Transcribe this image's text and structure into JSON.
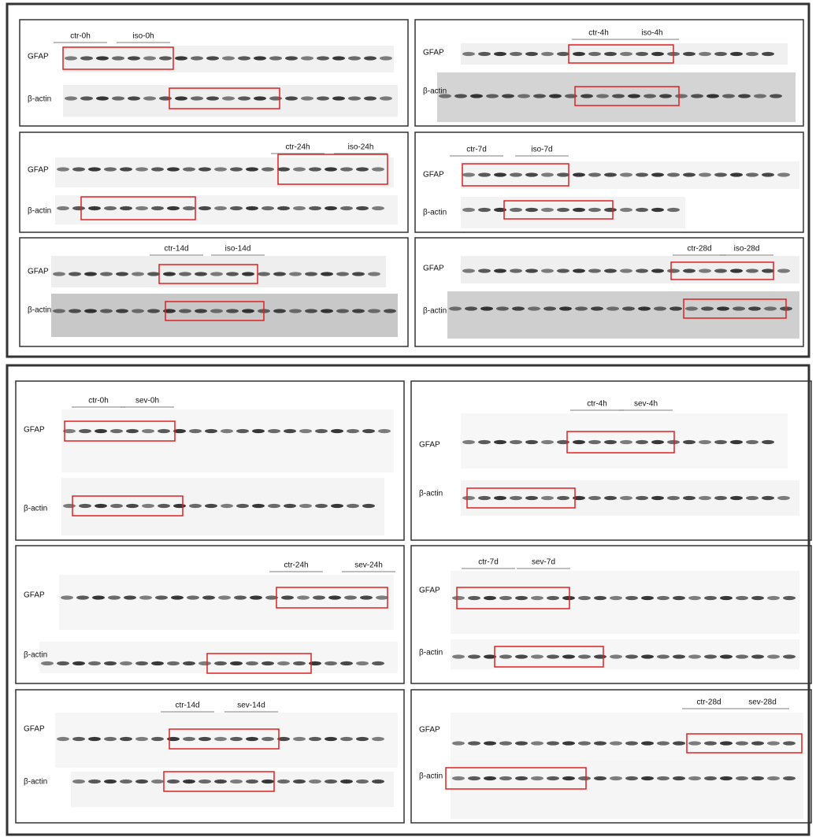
{
  "figures": [
    {
      "panels": [
        {
          "groups": [
            "ctr-0h",
            "iso-0h"
          ],
          "rows": [
            "GFAP",
            "β-actin"
          ]
        },
        {
          "groups": [
            "ctr-4h",
            "iso-4h"
          ],
          "rows": [
            "GFAP",
            "β-actin"
          ]
        },
        {
          "groups": [
            "ctr-24h",
            "iso-24h"
          ],
          "rows": [
            "GFAP",
            "β-actin"
          ]
        },
        {
          "groups": [
            "ctr-7d",
            "iso-7d"
          ],
          "rows": [
            "GFAP",
            "β-actin"
          ]
        },
        {
          "groups": [
            "ctr-14d",
            "iso-14d"
          ],
          "rows": [
            "GFAP",
            "β-actin"
          ]
        },
        {
          "groups": [
            "ctr-28d",
            "iso-28d"
          ],
          "rows": [
            "GFAP",
            "β-actin"
          ]
        }
      ]
    },
    {
      "panels": [
        {
          "groups": [
            "ctr-0h",
            "sev-0h"
          ],
          "rows": [
            "GFAP",
            "β-actin"
          ]
        },
        {
          "groups": [
            "ctr-4h",
            "sev-4h"
          ],
          "rows": [
            "GFAP",
            "β-actin"
          ]
        },
        {
          "groups": [
            "ctr-24h",
            "sev-24h"
          ],
          "rows": [
            "GFAP",
            "β-actin"
          ]
        },
        {
          "groups": [
            "ctr-7d",
            "sev-7d"
          ],
          "rows": [
            "GFAP",
            "β-actin"
          ]
        },
        {
          "groups": [
            "ctr-14d",
            "sev-14d"
          ],
          "rows": [
            "GFAP",
            "β-actin"
          ]
        },
        {
          "groups": [
            "ctr-28d",
            "sev-28d"
          ],
          "rows": [
            "GFAP",
            "β-actin"
          ]
        }
      ]
    }
  ]
}
